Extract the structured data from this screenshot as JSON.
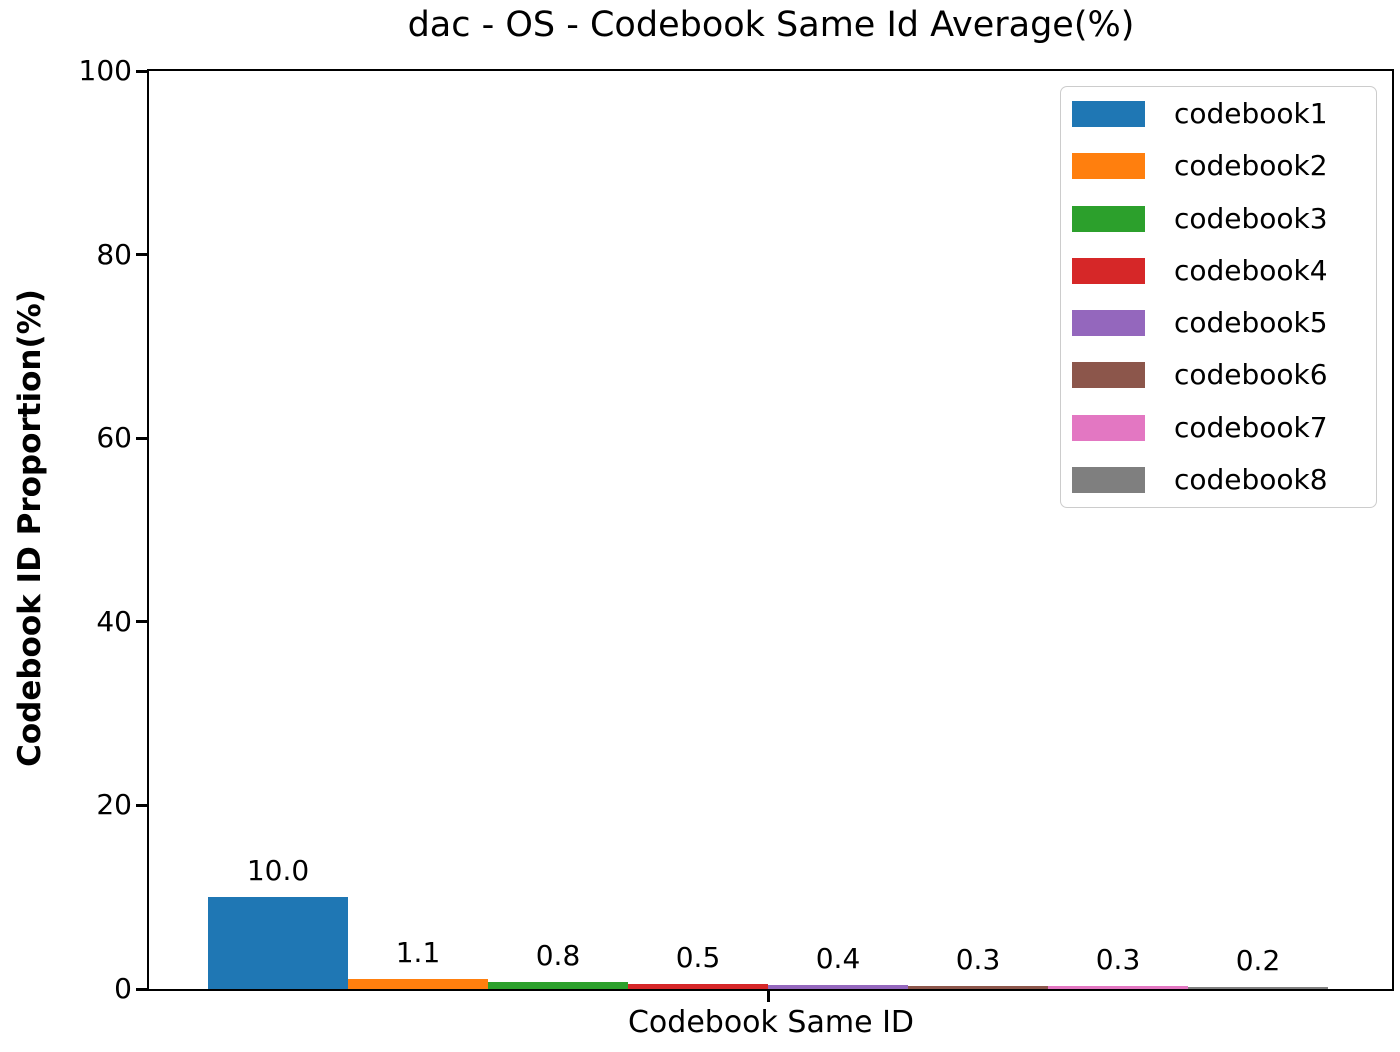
{
  "chart_data": {
    "type": "bar",
    "title": "dac - OS - Codebook Same Id Average(%)",
    "xlabel": "Codebook Same ID",
    "ylabel": "Codebook ID Proportion(%)",
    "ylim": [
      0,
      100
    ],
    "yticks": [
      0,
      20,
      40,
      60,
      80,
      100
    ],
    "grid": false,
    "legend_position": "upper right",
    "axis_color": "#000000",
    "background_color": "#ffffff",
    "series": [
      {
        "name": "codebook1",
        "value": 10.0,
        "label": "10.0",
        "color": "#1f77b4"
      },
      {
        "name": "codebook2",
        "value": 1.1,
        "label": "1.1",
        "color": "#ff7f0e"
      },
      {
        "name": "codebook3",
        "value": 0.8,
        "label": "0.8",
        "color": "#2ca02c"
      },
      {
        "name": "codebook4",
        "value": 0.5,
        "label": "0.5",
        "color": "#d62728"
      },
      {
        "name": "codebook5",
        "value": 0.4,
        "label": "0.4",
        "color": "#9467bd"
      },
      {
        "name": "codebook6",
        "value": 0.3,
        "label": "0.3",
        "color": "#8c564b"
      },
      {
        "name": "codebook7",
        "value": 0.3,
        "label": "0.3",
        "color": "#e377c2"
      },
      {
        "name": "codebook8",
        "value": 0.2,
        "label": "0.2",
        "color": "#7f7f7f"
      }
    ]
  }
}
